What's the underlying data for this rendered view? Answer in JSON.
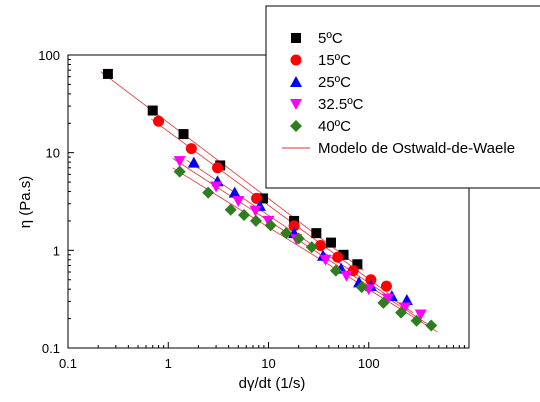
{
  "chart_data": {
    "type": "scatter",
    "xscale": "log",
    "yscale": "log",
    "xlim": [
      0.1,
      1000
    ],
    "ylim": [
      0.1,
      100
    ],
    "xlabel": "dγ/dt (1/s)",
    "ylabel": "η (Pa.s)",
    "x_ticks": [
      "0.1",
      "1",
      "10",
      "100"
    ],
    "y_ticks": [
      "0.1",
      "1",
      "10",
      "100"
    ],
    "legend_position": "top-right",
    "fit_label": "Modelo de Ostwald-de-Waele",
    "fit_color": "#e53030",
    "series": [
      {
        "name": "5ºC",
        "marker": "square",
        "color": "#000000",
        "x": [
          0.25,
          0.7,
          1.42,
          3.3,
          8.8,
          18,
          30,
          42,
          56,
          77
        ],
        "y": [
          64,
          27,
          15.5,
          7.4,
          3.4,
          2.0,
          1.5,
          1.2,
          0.9,
          0.72
        ]
      },
      {
        "name": "15ºC",
        "marker": "circle",
        "color": "#ff0000",
        "x": [
          0.8,
          1.7,
          3.1,
          7.6,
          18,
          33,
          49,
          70,
          105,
          150
        ],
        "y": [
          21,
          11,
          7.0,
          3.4,
          1.78,
          1.12,
          0.85,
          0.62,
          0.5,
          0.43
        ]
      },
      {
        "name": "25ºC",
        "marker": "triangle-up",
        "color": "#0000ff",
        "x": [
          1.8,
          3.1,
          4.6,
          8.2,
          18,
          35,
          53,
          80,
          105,
          170,
          240
        ],
        "y": [
          7.9,
          5.1,
          3.9,
          2.85,
          1.5,
          0.88,
          0.65,
          0.47,
          0.43,
          0.34,
          0.31
        ]
      },
      {
        "name": "32.5ºC",
        "marker": "triangle-down",
        "color": "#ff00ff",
        "x": [
          1.3,
          3.0,
          5.0,
          7.4,
          10,
          19,
          37,
          60,
          100,
          155,
          230,
          330
        ],
        "y": [
          8.2,
          4.5,
          3.2,
          2.55,
          2.0,
          1.3,
          0.8,
          0.55,
          0.4,
          0.32,
          0.26,
          0.22
        ]
      },
      {
        "name": "40ºC",
        "marker": "diamond",
        "color": "#2e7d1f",
        "x": [
          1.3,
          2.5,
          4.2,
          5.7,
          7.5,
          10.5,
          15,
          20,
          27,
          47,
          85,
          140,
          210,
          300,
          420
        ],
        "y": [
          6.4,
          3.9,
          2.6,
          2.3,
          2.0,
          1.8,
          1.5,
          1.32,
          1.08,
          0.62,
          0.42,
          0.29,
          0.23,
          0.19,
          0.17
        ]
      }
    ]
  }
}
